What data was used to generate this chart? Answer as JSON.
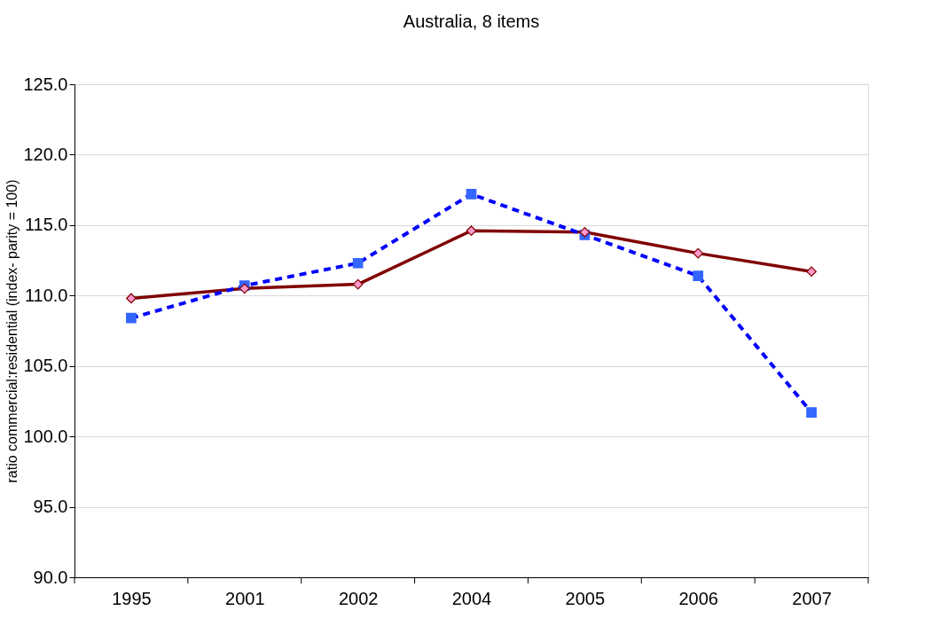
{
  "chart_data": {
    "type": "line",
    "title": "Australia, 8 items",
    "ylabel": "ratio commercial:residential (index- parity = 100)",
    "categories": [
      "1995",
      "2001",
      "2002",
      "2004",
      "2005",
      "2006",
      "2007"
    ],
    "series": [
      {
        "color": "#800000",
        "marker": "diamond",
        "line_style": "solid",
        "values": [
          109.8,
          110.5,
          110.8,
          114.6,
          114.5,
          113.0,
          111.7
        ]
      },
      {
        "color": "#0000ff",
        "marker": "square",
        "line_style": "dashed",
        "values": [
          108.4,
          110.7,
          112.3,
          117.2,
          114.3,
          111.4,
          101.7
        ]
      }
    ],
    "ylim": [
      90,
      125
    ],
    "yticks": [
      {
        "value": 90,
        "label": "90.0"
      },
      {
        "value": 95,
        "label": "95.0"
      },
      {
        "value": 100,
        "label": "100.0"
      },
      {
        "value": 105,
        "label": "105.0"
      },
      {
        "value": 110,
        "label": "110.0"
      },
      {
        "value": 115,
        "label": "115.0"
      },
      {
        "value": 120,
        "label": "120.0"
      },
      {
        "value": 125,
        "label": "125.0"
      }
    ],
    "grid": "y"
  }
}
